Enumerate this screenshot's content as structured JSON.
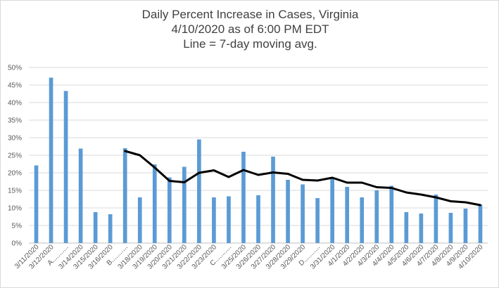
{
  "chart_data": {
    "type": "bar",
    "title": "Daily Percent Increase in Cases, Virginia",
    "subtitle_lines": [
      "4/10/2020 as of 6:00 PM EDT",
      "Line = 7-day moving avg."
    ],
    "xlabel": "",
    "ylabel": "",
    "ylim": [
      0,
      50
    ],
    "y_ticks": [
      "0%",
      "5%",
      "10%",
      "15%",
      "20%",
      "25%",
      "30%",
      "35%",
      "40%",
      "45%",
      "50%"
    ],
    "grid": true,
    "legend": "none",
    "categories": [
      "3/11/2020",
      "3/12/2020",
      "A...........",
      "3/14/2020",
      "3/15/2020",
      "3/16/2020",
      "B...........",
      "3/18/2020",
      "3/19/2020",
      "3/20/2020",
      "3/21/2020",
      "3/22/2020",
      "3/23/2020",
      "C...........",
      "3/25/2020",
      "3/26/2020",
      "3/27/2020",
      "3/28/2020",
      "3/29/2020",
      "D...........",
      "3/31/2020",
      "4/1/2020",
      "4/2/2020",
      "4/3/2020",
      "4/4/2020",
      "4/5/2020",
      "4/6/2020",
      "4/7/2020",
      "4/8/2020",
      "4/9/2020",
      "4/10/2020"
    ],
    "series": [
      {
        "type": "bar",
        "color": "#5b9bd5",
        "values": [
          22.1,
          47.1,
          43.3,
          26.9,
          8.8,
          8.2,
          27.0,
          13.0,
          22.4,
          18.7,
          21.7,
          29.5,
          13.0,
          13.3,
          26.0,
          13.6,
          24.6,
          18.0,
          16.7,
          12.8,
          18.6,
          16.0,
          13.0,
          15.0,
          16.3,
          8.8,
          8.4,
          13.8,
          8.6,
          9.8,
          10.9
        ]
      },
      {
        "type": "line",
        "color": "#000000",
        "values": [
          null,
          null,
          null,
          null,
          null,
          null,
          26.2,
          25.0,
          21.5,
          17.7,
          17.3,
          20.0,
          20.7,
          18.8,
          20.8,
          19.4,
          20.1,
          19.7,
          18.0,
          17.8,
          18.6,
          17.2,
          17.2,
          15.9,
          15.7,
          14.4,
          13.8,
          13.0,
          11.9,
          11.6,
          10.8
        ]
      }
    ]
  }
}
